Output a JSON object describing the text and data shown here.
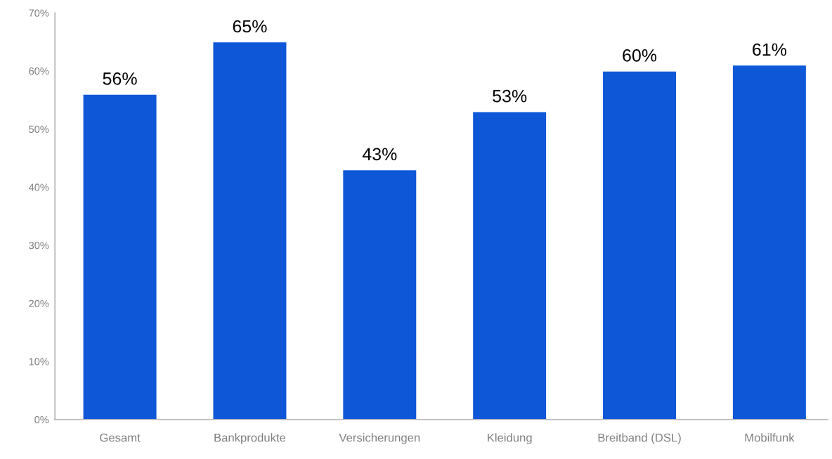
{
  "chart_data": {
    "type": "bar",
    "categories": [
      "Gesamt",
      "Bankprodukte",
      "Versicherungen",
      "Kleidung",
      "Breitband (DSL)",
      "Mobilfunk"
    ],
    "values": [
      56,
      65,
      43,
      53,
      60,
      61
    ],
    "value_labels": [
      "56%",
      "65%",
      "43%",
      "53%",
      "60%",
      "61%"
    ],
    "color": "#0e58d8",
    "ylim": [
      0,
      70
    ],
    "yticks": [
      {
        "value": 0,
        "label": "0%"
      },
      {
        "value": 10,
        "label": "10%"
      },
      {
        "value": 20,
        "label": "20%"
      },
      {
        "value": 30,
        "label": "30%"
      },
      {
        "value": 40,
        "label": "40%"
      },
      {
        "value": 50,
        "label": "50%"
      },
      {
        "value": 60,
        "label": "60%"
      },
      {
        "value": 70,
        "label": "70%"
      }
    ],
    "grid": false,
    "legend": false
  }
}
